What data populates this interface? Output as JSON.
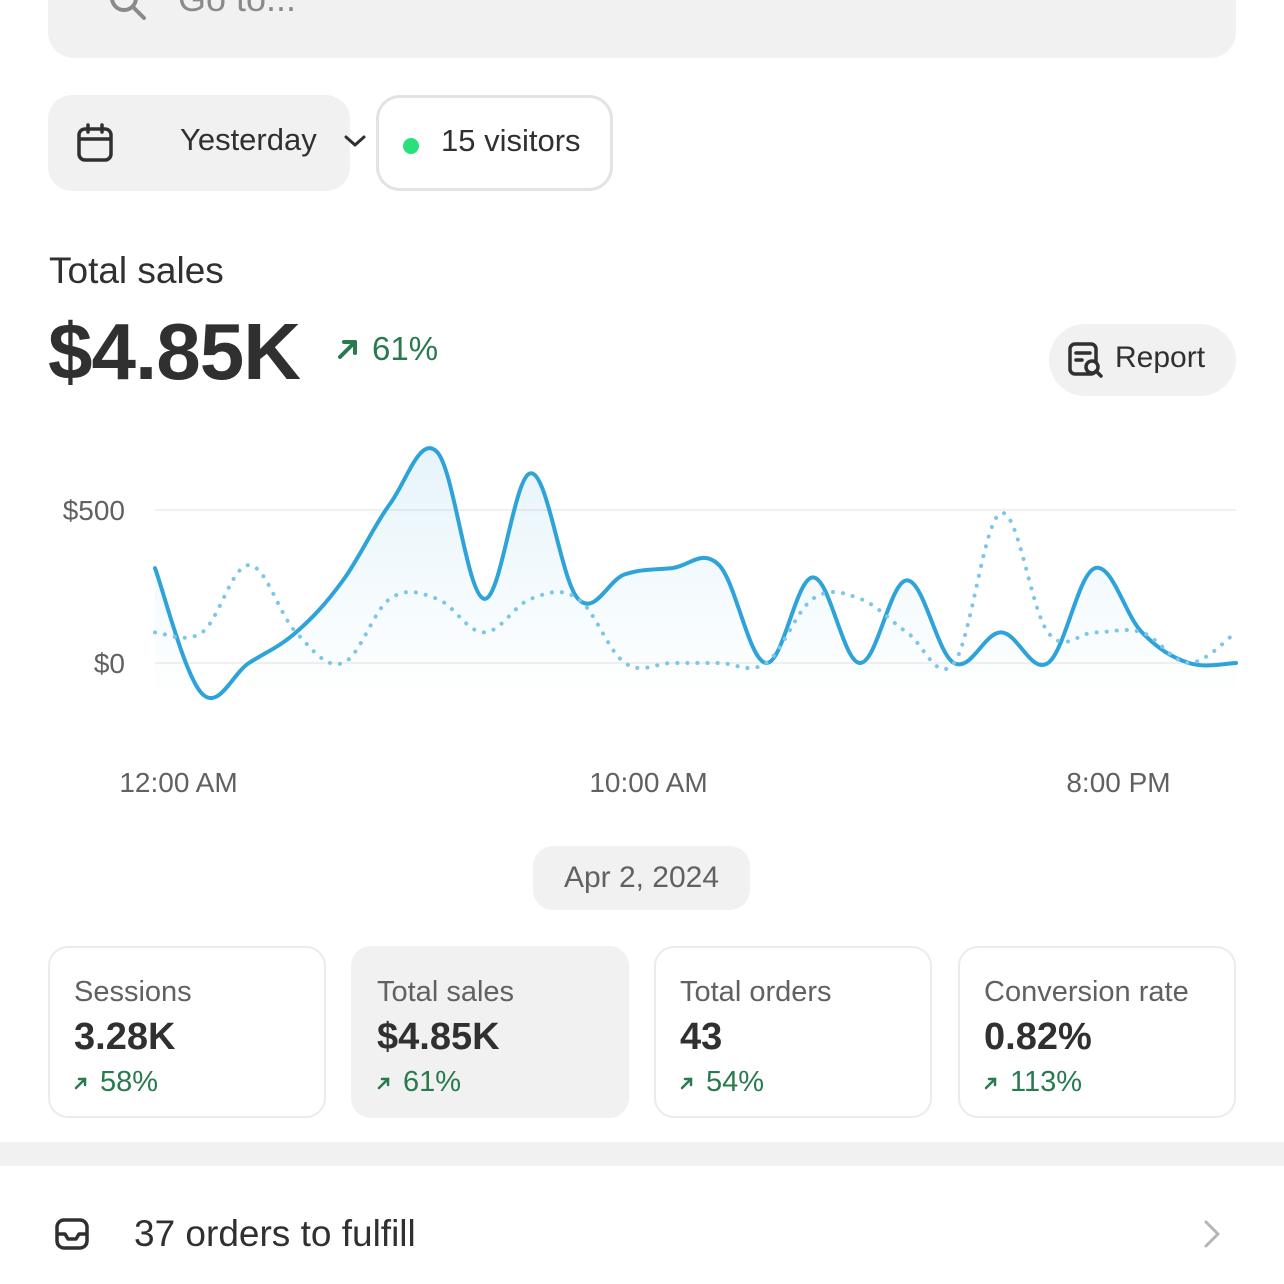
{
  "search": {
    "placeholder": "Go to...",
    "icon": "search-icon"
  },
  "filters": {
    "date_range": {
      "label": "Yesterday",
      "icon": "calendar-icon",
      "dropdown_icon": "chevron-down-icon"
    },
    "live_visitors": {
      "label": "15 visitors",
      "status_color": "#29e07b"
    }
  },
  "metric": {
    "title": "Total sales",
    "value": "$4.85K",
    "change": "61%",
    "change_direction": "up",
    "report_button": {
      "label": "Report",
      "icon": "report-search-icon"
    }
  },
  "chart_data": {
    "type": "line",
    "y_tick_labels": [
      "$500",
      "$0"
    ],
    "y_ticks": [
      500,
      0
    ],
    "ylim": [
      -150,
      700
    ],
    "x_tick_labels": [
      "12:00 AM",
      "10:00 AM",
      "8:00 PM"
    ],
    "x_tick_hours": [
      0.5,
      10.5,
      20.5
    ],
    "grid": true,
    "series": [
      {
        "style": "solid",
        "color": "#2ea3d9",
        "x": [
          0,
          1,
          2,
          3,
          4,
          5,
          6,
          7,
          8,
          9,
          10,
          11,
          12,
          13,
          14,
          15,
          16,
          17,
          18,
          19,
          20,
          21,
          22,
          23
        ],
        "values": [
          310,
          -100,
          0,
          100,
          270,
          520,
          690,
          210,
          620,
          210,
          290,
          310,
          320,
          0,
          280,
          0,
          270,
          0,
          100,
          0,
          310,
          100,
          0,
          0
        ]
      },
      {
        "style": "dotted",
        "color": "#7cc6e8",
        "x": [
          0,
          1,
          2,
          3,
          4,
          5,
          6,
          7,
          8,
          9,
          10,
          11,
          12,
          13,
          14,
          15,
          16,
          17,
          18,
          19,
          20,
          21,
          22,
          23
        ],
        "values": [
          100,
          100,
          320,
          100,
          0,
          210,
          210,
          100,
          210,
          210,
          0,
          0,
          0,
          0,
          210,
          210,
          100,
          0,
          490,
          100,
          100,
          100,
          0,
          100
        ]
      }
    ]
  },
  "date_label": "Apr 2, 2024",
  "stats": [
    {
      "label": "Sessions",
      "value": "3.28K",
      "change": "58%",
      "active": false
    },
    {
      "label": "Total sales",
      "value": "$4.85K",
      "change": "61%",
      "active": true
    },
    {
      "label": "Total orders",
      "value": "43",
      "change": "54%",
      "active": false
    },
    {
      "label": "Conversion rate",
      "value": "0.82%",
      "change": "113%",
      "active": false
    }
  ],
  "tasks": {
    "fulfill_label": "37 orders to fulfill",
    "icon": "inbox-icon",
    "arrow_icon": "chevron-right-icon"
  },
  "colors": {
    "positive": "#297a4f",
    "line_primary": "#2ea3d9",
    "line_compare": "#7cc6e8",
    "surface": "#f1f1f1"
  }
}
